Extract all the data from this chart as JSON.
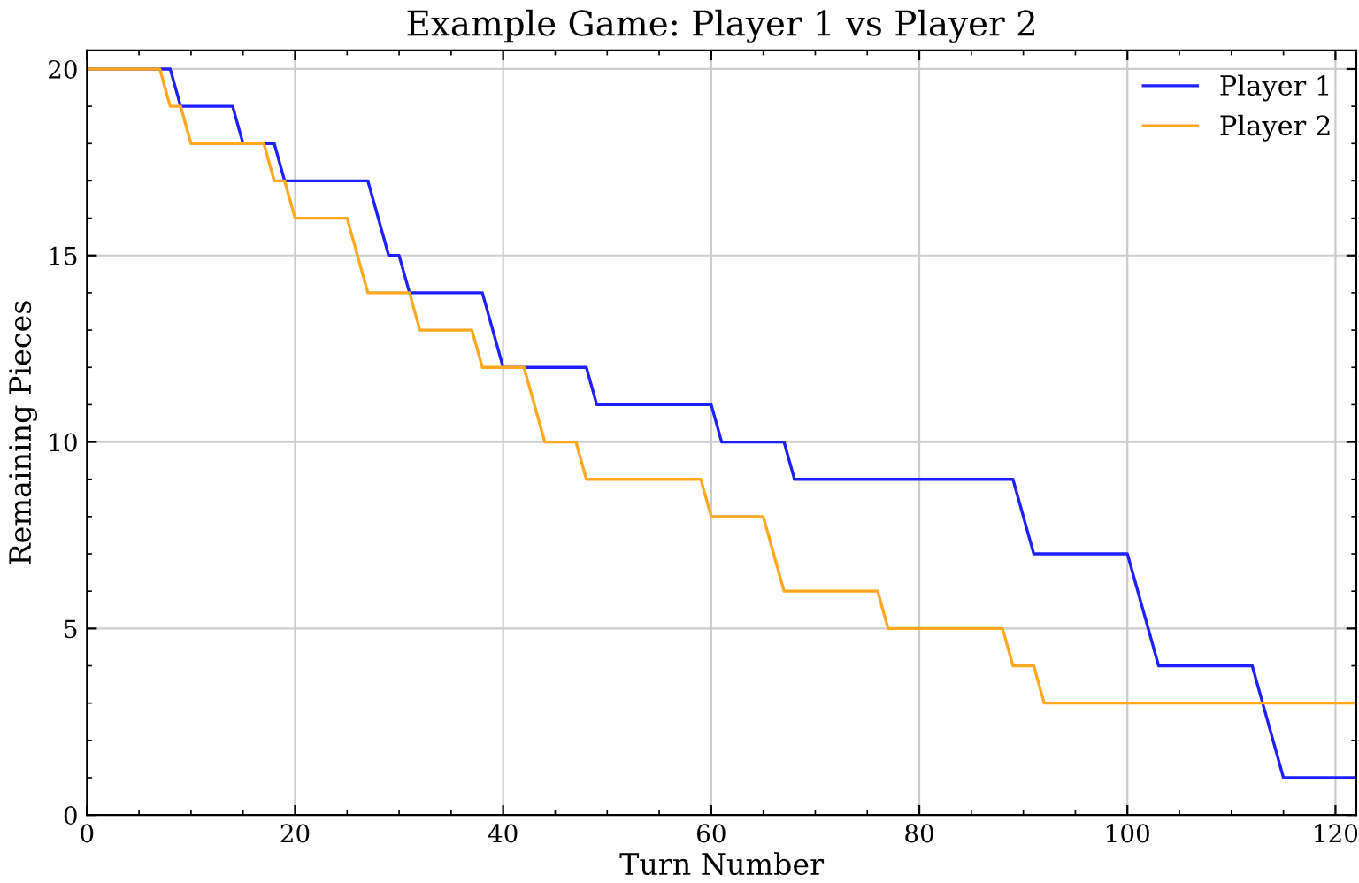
{
  "chart_data": {
    "type": "line",
    "title": "Example Game: Player 1 vs Player 2",
    "xlabel": "Turn Number",
    "ylabel": "Remaining Pieces",
    "xlim": [
      0,
      122
    ],
    "ylim": [
      0,
      20.5
    ],
    "xticks": [
      0,
      20,
      40,
      60,
      80,
      100,
      120
    ],
    "yticks": [
      0,
      5,
      10,
      15,
      20
    ],
    "grid": true,
    "legend": "top right",
    "marker": "none",
    "line_style": "solid",
    "series": [
      {
        "name": "Player 1",
        "color": "#1f1fff",
        "x": [
          0,
          8,
          9,
          14,
          15,
          18,
          19,
          27,
          29,
          30,
          31,
          38,
          40,
          48,
          49,
          60,
          61,
          67,
          68,
          89,
          91,
          100,
          103,
          112,
          115,
          122
        ],
        "values": [
          20,
          20,
          19,
          19,
          18,
          18,
          17,
          17,
          15,
          15,
          14,
          14,
          12,
          12,
          11,
          11,
          10,
          10,
          9,
          9,
          7,
          7,
          4,
          4,
          1,
          1
        ]
      },
      {
        "name": "Player 2",
        "color": "#ffa820",
        "x": [
          0,
          7,
          8,
          9,
          10,
          17,
          18,
          19,
          20,
          25,
          27,
          31,
          32,
          37,
          38,
          42,
          44,
          47,
          48,
          59,
          60,
          65,
          67,
          76,
          77,
          88,
          89,
          91,
          92,
          122
        ],
        "values": [
          20,
          20,
          19,
          19,
          18,
          18,
          17,
          17,
          16,
          16,
          14,
          14,
          13,
          13,
          12,
          12,
          10,
          10,
          9,
          9,
          8,
          8,
          6,
          6,
          5,
          5,
          4,
          4,
          3,
          3
        ]
      }
    ]
  }
}
